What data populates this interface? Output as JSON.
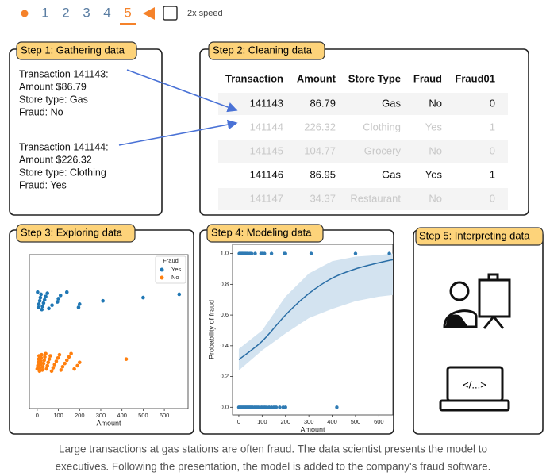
{
  "controls": {
    "steps": [
      "1",
      "2",
      "3",
      "4",
      "5"
    ],
    "speed_label": "2x speed"
  },
  "panels": [
    {
      "title": "Step 1: Gathering data",
      "records": [
        [
          "Transaction 141143:",
          "Amount $86.79",
          "Store type: Gas",
          "Fraud: No"
        ],
        [
          "Transaction 141144:",
          "Amount $226.32",
          "Store type: Clothing",
          "Fraud: Yes"
        ]
      ]
    },
    {
      "title": "Step 2: Cleaning data"
    },
    {
      "title": "Step 3: Exploring data"
    },
    {
      "title": "Step 4: Modeling data"
    },
    {
      "title": "Step 5: Interpreting data"
    }
  ],
  "table": {
    "columns": [
      "Transaction",
      "Amount",
      "Store Type",
      "Fraud",
      "Fraud01"
    ],
    "rows": [
      [
        "141143",
        "86.79",
        "Gas",
        "No",
        "0"
      ],
      [
        "141144",
        "226.32",
        "Clothing",
        "Yes",
        "1"
      ],
      [
        "141145",
        "104.77",
        "Grocery",
        "No",
        "0"
      ],
      [
        "141146",
        "86.95",
        "Gas",
        "Yes",
        "1"
      ],
      [
        "141147",
        "34.37",
        "Restaurant",
        "No",
        "0"
      ]
    ]
  },
  "chart_data": [
    {
      "type": "strip",
      "x_label": "Amount",
      "legend_title": "Fraud",
      "legend": "upper right",
      "xlim": [
        -37,
        712
      ],
      "xticks": [
        0,
        100,
        200,
        300,
        400,
        500,
        600
      ],
      "series": [
        {
          "name": "Yes",
          "color": "#1f77b4",
          "x": [
            2,
            5,
            8,
            12,
            15,
            18,
            22,
            25,
            30,
            35,
            40,
            48,
            55,
            70,
            95,
            100,
            110,
            140,
            195,
            200,
            310,
            500,
            670
          ]
        },
        {
          "name": "No",
          "color": "#ff7f0e",
          "x": [
            0,
            3,
            5,
            7,
            9,
            11,
            13,
            15,
            17,
            19,
            21,
            24,
            27,
            30,
            33,
            36,
            40,
            44,
            48,
            52,
            57,
            62,
            68,
            75,
            82,
            90,
            98,
            105,
            112,
            120,
            130,
            140,
            150,
            160,
            175,
            190,
            200,
            420
          ]
        }
      ]
    },
    {
      "type": "regression",
      "x_label": "Amount",
      "y_label": "Probability of fraud",
      "xlim": [
        -27,
        660
      ],
      "ylim": [
        -0.05,
        1.06
      ],
      "xticks": [
        0,
        100,
        200,
        300,
        400,
        500,
        600
      ],
      "yticks": [
        {
          "value": 0,
          "label": "0.0"
        },
        0.2,
        0.4,
        0.6,
        0.8,
        {
          "value": 1,
          "label": "1.0"
        }
      ],
      "points": [
        {
          "color": "#2f7bb4",
          "x": [
            2,
            5,
            8,
            12,
            15,
            18,
            22,
            25,
            30,
            35,
            40,
            48,
            55,
            70,
            95,
            100,
            110,
            140,
            195,
            200,
            310,
            500,
            645
          ],
          "values": [
            1,
            1,
            1,
            1,
            1,
            1,
            1,
            1,
            1,
            1,
            1,
            1,
            1,
            1,
            1,
            1,
            1,
            1,
            1,
            1,
            1,
            1,
            1
          ]
        },
        {
          "color": "#2f7bb4",
          "x": [
            0,
            5,
            10,
            15,
            20,
            25,
            30,
            35,
            40,
            45,
            50,
            55,
            60,
            68,
            75,
            82,
            90,
            98,
            105,
            112,
            120,
            130,
            140,
            150,
            160,
            175,
            190,
            200,
            420
          ],
          "values": [
            0,
            0,
            0,
            0,
            0,
            0,
            0,
            0,
            0,
            0,
            0,
            0,
            0,
            0,
            0,
            0,
            0,
            0,
            0,
            0,
            0,
            0,
            0,
            0,
            0,
            0,
            0,
            0,
            0
          ]
        }
      ],
      "curve": {
        "color": "#2a6ea6",
        "x": [
          0,
          100,
          200,
          300,
          400,
          500,
          600,
          660
        ],
        "values": [
          0.31,
          0.43,
          0.6,
          0.74,
          0.84,
          0.9,
          0.94,
          0.96
        ]
      },
      "band": {
        "color": "#d3e3f0",
        "x": [
          0,
          100,
          200,
          300,
          400,
          500,
          600,
          660
        ],
        "lower": [
          0.24,
          0.37,
          0.48,
          0.58,
          0.64,
          0.69,
          0.72,
          0.73
        ],
        "upper": [
          0.38,
          0.5,
          0.72,
          0.87,
          0.95,
          0.98,
          0.99,
          1.0
        ]
      }
    }
  ],
  "caption": [
    "Large transactions at gas stations are often fraud. The data scientist presents the model to",
    "executives. Following the presentation, the model is added to the company's fraud software."
  ]
}
